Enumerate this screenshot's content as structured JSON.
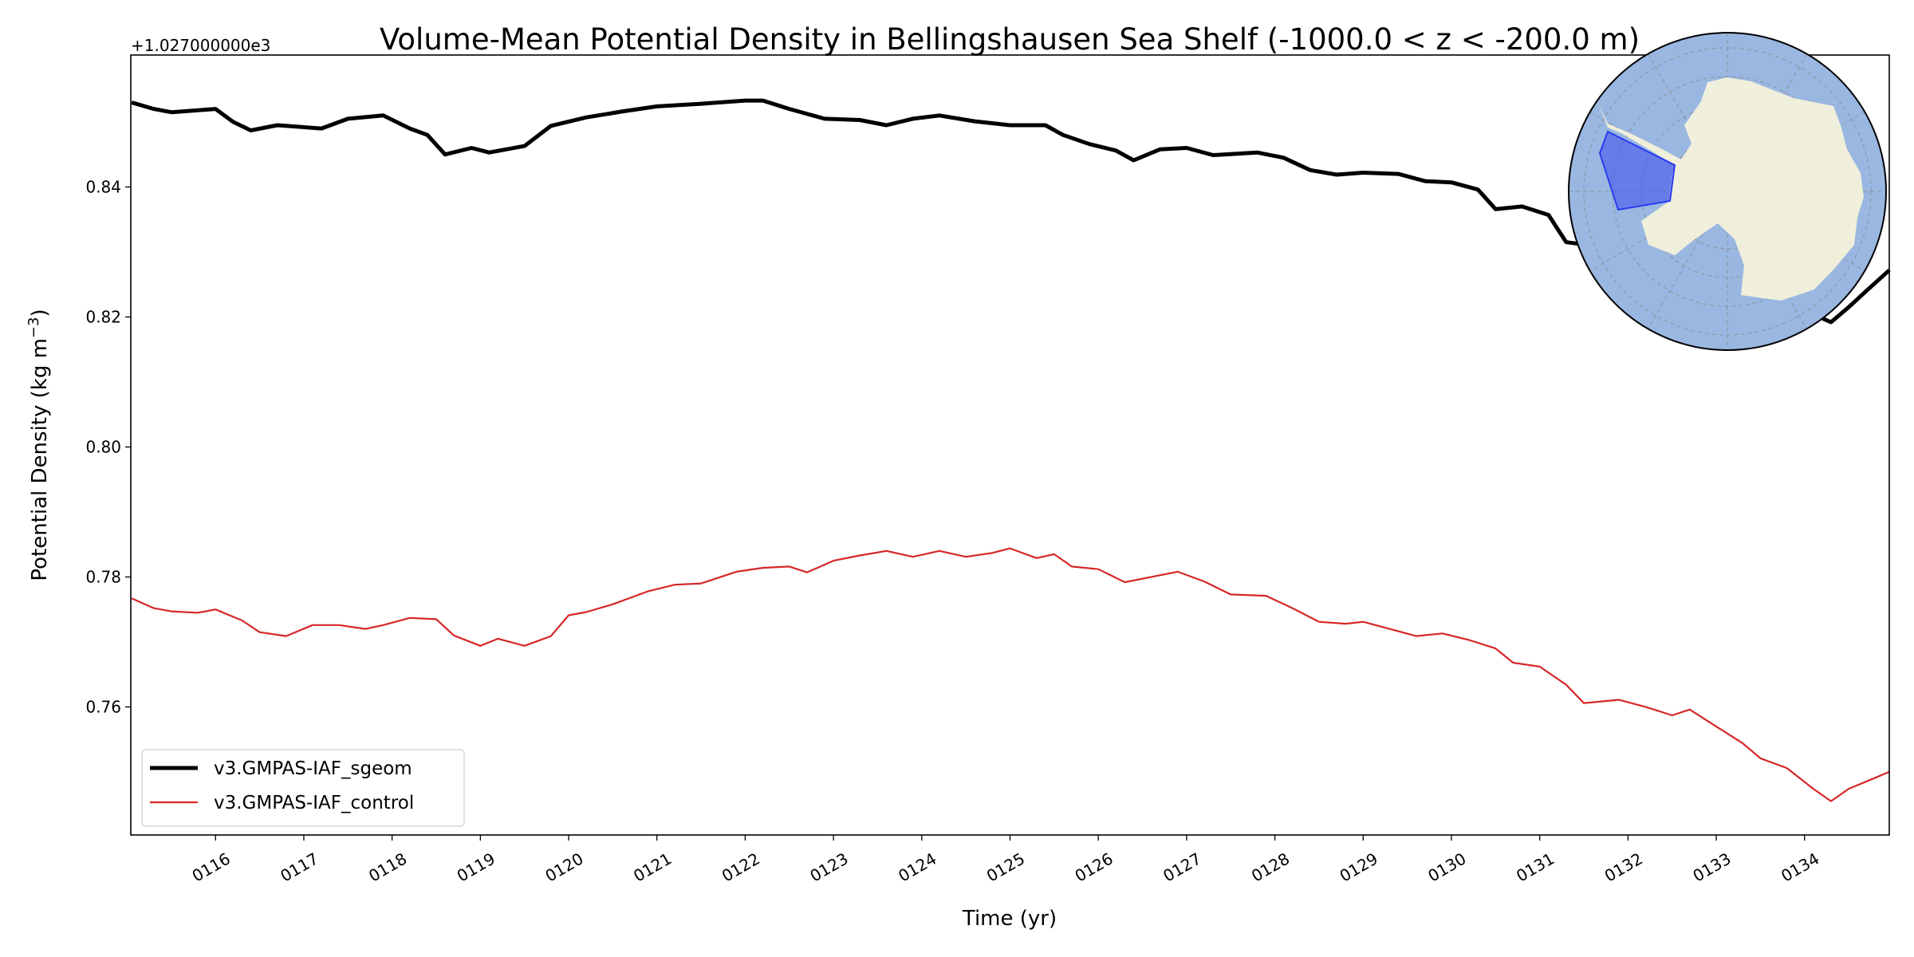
{
  "chart_data": {
    "type": "line",
    "title": "Volume-Mean Potential Density in Bellingshausen Sea Shelf (-1000.0 < z < -200.0 m)",
    "offset_text": "+1.027000000e3",
    "xlabel": "Time (yr)",
    "ylabel_main": "Potential Density (kg m",
    "ylabel_sup": "−3",
    "ylabel_close": ")",
    "xlim": [
      115.04,
      134.96
    ],
    "ylim": [
      0.7403,
      0.8603
    ],
    "grid": false,
    "legend_position": "lower-left",
    "xticks": [
      116,
      117,
      118,
      119,
      120,
      121,
      122,
      123,
      124,
      125,
      126,
      127,
      128,
      129,
      130,
      131,
      132,
      133,
      134
    ],
    "xtick_labels": [
      "0116",
      "0117",
      "0118",
      "0119",
      "0120",
      "0121",
      "0122",
      "0123",
      "0124",
      "0125",
      "0126",
      "0127",
      "0128",
      "0129",
      "0130",
      "0131",
      "0132",
      "0133",
      "0134"
    ],
    "yticks": [
      0.76,
      0.78,
      0.8,
      0.82,
      0.84
    ],
    "ytick_labels": [
      "0.76",
      "0.78",
      "0.80",
      "0.82",
      "0.84"
    ],
    "series": [
      {
        "name": "v3.GMPAS-IAF_sgeom",
        "color": "#000000",
        "x": [
          115.05,
          115.3,
          115.5,
          116.0,
          116.2,
          116.4,
          116.7,
          117.2,
          117.5,
          117.9,
          118.2,
          118.4,
          118.6,
          118.9,
          119.1,
          119.5,
          119.8,
          120.2,
          120.6,
          121.0,
          121.5,
          122.0,
          122.2,
          122.5,
          122.9,
          123.3,
          123.6,
          123.9,
          124.2,
          124.6,
          125.0,
          125.4,
          125.6,
          125.9,
          126.2,
          126.4,
          126.7,
          127.0,
          127.3,
          127.8,
          128.1,
          128.4,
          128.7,
          129.0,
          129.4,
          129.7,
          130.0,
          130.3,
          130.5,
          130.8,
          131.1,
          131.3,
          131.6,
          132.0,
          132.5,
          133.0,
          133.5,
          134.0,
          134.3,
          134.5,
          134.7,
          134.96
        ],
        "y": [
          0.853,
          0.852,
          0.8515,
          0.852,
          0.85,
          0.8487,
          0.8495,
          0.849,
          0.8505,
          0.851,
          0.849,
          0.848,
          0.845,
          0.846,
          0.8453,
          0.8463,
          0.8494,
          0.8507,
          0.8516,
          0.8524,
          0.8528,
          0.8533,
          0.8533,
          0.852,
          0.8505,
          0.8503,
          0.8495,
          0.8505,
          0.851,
          0.8501,
          0.8495,
          0.8495,
          0.848,
          0.8466,
          0.8456,
          0.8441,
          0.8458,
          0.846,
          0.8449,
          0.8453,
          0.8445,
          0.8426,
          0.8419,
          0.8422,
          0.842,
          0.8409,
          0.8407,
          0.8396,
          0.8366,
          0.837,
          0.8357,
          0.8315,
          0.831,
          0.83,
          0.8285,
          0.8265,
          0.824,
          0.821,
          0.8192,
          0.8215,
          0.824,
          0.8272
        ]
      },
      {
        "name": "v3.GMPAS-IAF_control",
        "color": "#d62728",
        "x": [
          115.05,
          115.3,
          115.5,
          115.8,
          116.0,
          116.3,
          116.5,
          116.8,
          117.1,
          117.4,
          117.7,
          117.9,
          118.2,
          118.5,
          118.7,
          119.0,
          119.2,
          119.5,
          119.8,
          120.0,
          120.2,
          120.5,
          120.9,
          121.2,
          121.5,
          121.9,
          122.2,
          122.5,
          122.7,
          123.0,
          123.3,
          123.6,
          123.9,
          124.2,
          124.5,
          124.8,
          125.0,
          125.3,
          125.5,
          125.7,
          126.0,
          126.3,
          126.6,
          126.9,
          127.2,
          127.5,
          127.9,
          128.2,
          128.5,
          128.8,
          129.0,
          129.3,
          129.6,
          129.9,
          130.2,
          130.5,
          130.7,
          131.0,
          131.3,
          131.5,
          131.9,
          132.2,
          132.5,
          132.7,
          133.0,
          133.3,
          133.5,
          133.8,
          134.1,
          134.3,
          134.5,
          134.8,
          134.96
        ],
        "y": [
          0.7767,
          0.7752,
          0.7747,
          0.7745,
          0.775,
          0.7733,
          0.7715,
          0.7709,
          0.7726,
          0.7726,
          0.772,
          0.7726,
          0.7737,
          0.7735,
          0.771,
          0.7694,
          0.7705,
          0.7694,
          0.7709,
          0.7741,
          0.7746,
          0.7758,
          0.7778,
          0.7788,
          0.779,
          0.7808,
          0.7814,
          0.7816,
          0.7807,
          0.7825,
          0.7833,
          0.784,
          0.7831,
          0.784,
          0.7831,
          0.7837,
          0.7844,
          0.7829,
          0.7835,
          0.7816,
          0.7812,
          0.7792,
          0.78,
          0.7808,
          0.7793,
          0.7773,
          0.7771,
          0.7752,
          0.7731,
          0.7728,
          0.7731,
          0.772,
          0.7709,
          0.7713,
          0.7703,
          0.769,
          0.7668,
          0.7662,
          0.7634,
          0.7606,
          0.7611,
          0.76,
          0.7587,
          0.7596,
          0.757,
          0.7544,
          0.7521,
          0.7506,
          0.7474,
          0.7455,
          0.7474,
          0.7491,
          0.75
        ]
      }
    ]
  },
  "inset_map": {
    "ocean_color": "#9ab7e1",
    "land_color": "#efefdb",
    "region_color": "#3a4cf0"
  }
}
